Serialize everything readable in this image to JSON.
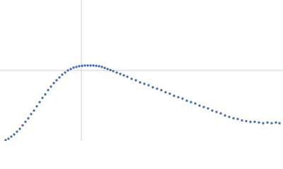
{
  "chart_data": {
    "type": "scatter",
    "color": "#3b68b0",
    "grid": true,
    "xlim": [
      0,
      4
    ],
    "ylim": [
      0,
      2
    ],
    "xticks": [
      1.15
    ],
    "yticks": [
      1
    ],
    "x": [
      0.08,
      0.12,
      0.16,
      0.2,
      0.24,
      0.28,
      0.32,
      0.36,
      0.4,
      0.44,
      0.48,
      0.52,
      0.56,
      0.6,
      0.64,
      0.68,
      0.72,
      0.76,
      0.8,
      0.84,
      0.88,
      0.92,
      0.96,
      1.0,
      1.04,
      1.08,
      1.12,
      1.16,
      1.2,
      1.24,
      1.28,
      1.32,
      1.36,
      1.4,
      1.44,
      1.48,
      1.52,
      1.56,
      1.6,
      1.65,
      1.7,
      1.75,
      1.8,
      1.86,
      1.92,
      1.98,
      2.04,
      2.1,
      2.16,
      2.22,
      2.28,
      2.34,
      2.4,
      2.46,
      2.52,
      2.58,
      2.64,
      2.7,
      2.76,
      2.82,
      2.88,
      2.94,
      3.0,
      3.06,
      3.12,
      3.18,
      3.24,
      3.3,
      3.36,
      3.42,
      3.48,
      3.54,
      3.6,
      3.66,
      3.72,
      3.78,
      3.84,
      3.9,
      3.95
    ],
    "values": [
      0.01,
      0.03,
      0.06,
      0.09,
      0.13,
      0.17,
      0.22,
      0.27,
      0.32,
      0.38,
      0.43,
      0.49,
      0.55,
      0.61,
      0.66,
      0.72,
      0.77,
      0.82,
      0.86,
      0.9,
      0.94,
      0.97,
      1.0,
      1.02,
      1.04,
      1.05,
      1.06,
      1.065,
      1.07,
      1.07,
      1.07,
      1.07,
      1.065,
      1.06,
      1.05,
      1.035,
      1.02,
      1.005,
      0.99,
      0.97,
      0.95,
      0.93,
      0.91,
      0.88,
      0.86,
      0.83,
      0.81,
      0.79,
      0.76,
      0.74,
      0.72,
      0.69,
      0.67,
      0.64,
      0.62,
      0.6,
      0.57,
      0.55,
      0.53,
      0.5,
      0.48,
      0.46,
      0.43,
      0.41,
      0.39,
      0.36,
      0.34,
      0.32,
      0.31,
      0.29,
      0.28,
      0.27,
      0.27,
      0.26,
      0.25,
      0.26,
      0.25,
      0.26,
      0.25
    ]
  }
}
